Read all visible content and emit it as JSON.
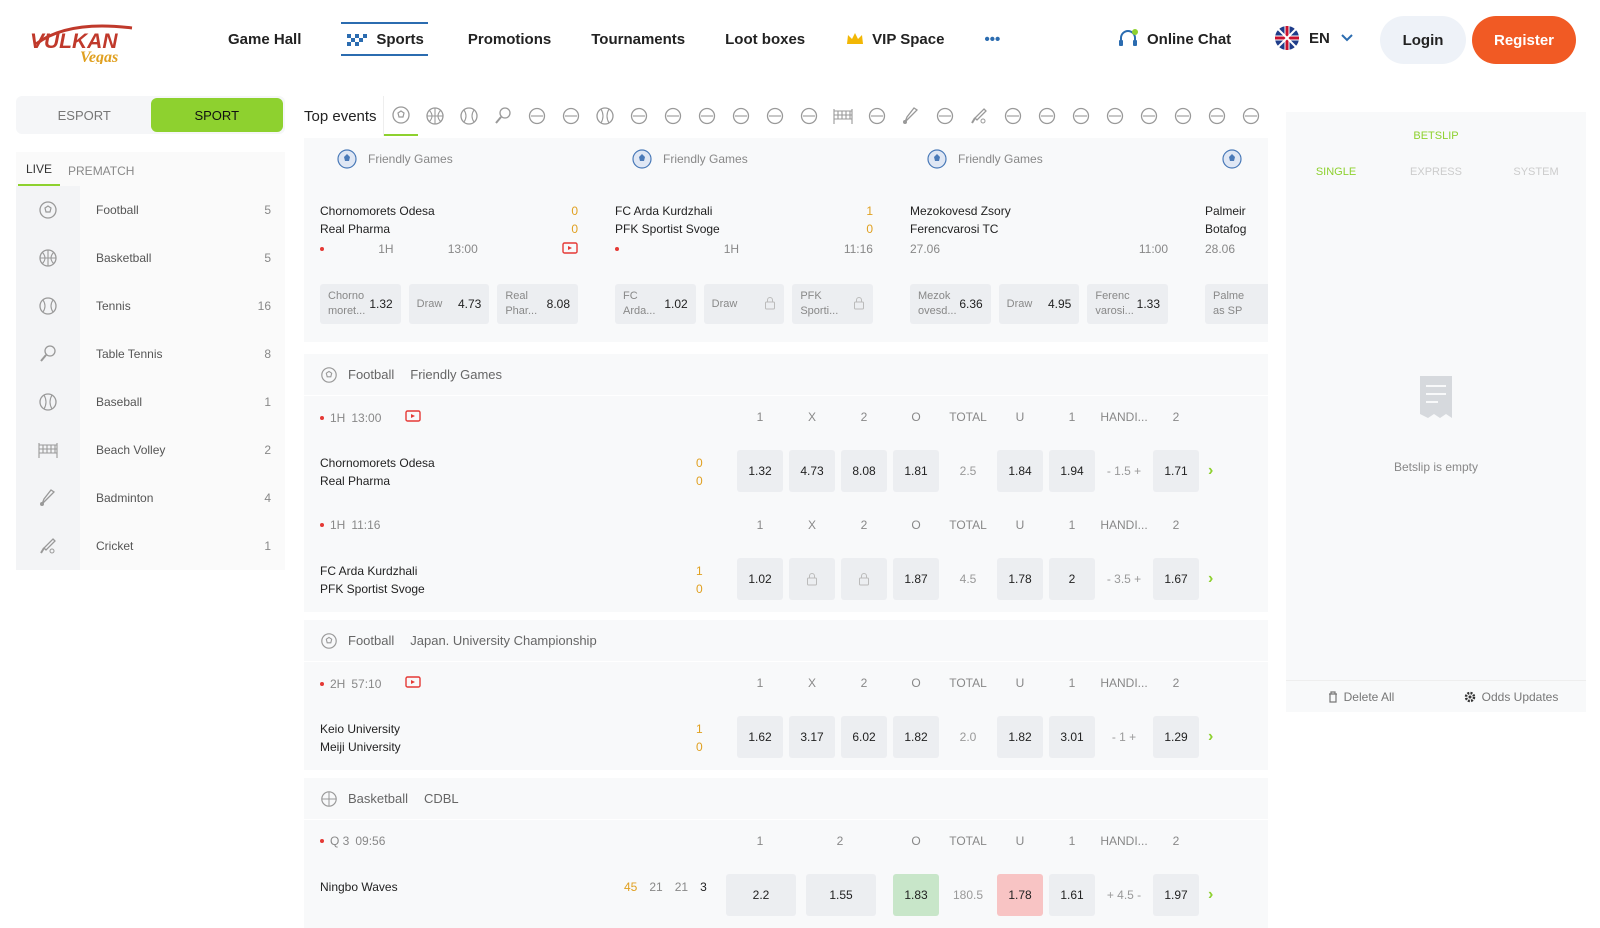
{
  "brand": {
    "line1": "VULKAN",
    "line2": "Vegas"
  },
  "nav": {
    "items": [
      "Game Hall",
      "Sports",
      "Promotions",
      "Tournaments",
      "Loot boxes",
      "VIP Space"
    ],
    "more": "•••",
    "chat": "Online Chat",
    "lang": "EN",
    "login": "Login",
    "register": "Register"
  },
  "sidebar": {
    "toggle": [
      "ESPORT",
      "SPORT"
    ],
    "tabs": [
      "LIVE",
      "PREMATCH"
    ],
    "sports": [
      {
        "label": "Football",
        "count": "5",
        "icon": "football-icon"
      },
      {
        "label": "Basketball",
        "count": "5",
        "icon": "basketball-icon"
      },
      {
        "label": "Tennis",
        "count": "16",
        "icon": "tennis-icon"
      },
      {
        "label": "Table Tennis",
        "count": "8",
        "icon": "table-tennis-icon"
      },
      {
        "label": "Baseball",
        "count": "1",
        "icon": "baseball-icon"
      },
      {
        "label": "Beach Volley",
        "count": "2",
        "icon": "beach-volley-icon"
      },
      {
        "label": "Badminton",
        "count": "4",
        "icon": "badminton-icon"
      },
      {
        "label": "Cricket",
        "count": "1",
        "icon": "cricket-icon"
      }
    ]
  },
  "top_events": {
    "title": "Top events",
    "cards": [
      {
        "league": "Friendly Games",
        "home": "Chornomorets Odesa",
        "away": "Real Pharma",
        "hs": "0",
        "as": "0",
        "period": "1H",
        "time": "13:00",
        "odds": [
          {
            "n1": "Chorno",
            "n2": "moret...",
            "v": "1.32"
          },
          {
            "n1": "Draw",
            "n2": "",
            "v": "4.73"
          },
          {
            "n1": "Real",
            "n2": "Phar...",
            "v": "8.08"
          }
        ]
      },
      {
        "league": "Friendly Games",
        "home": "FC Arda Kurdzhali",
        "away": "PFK Sportist Svoge",
        "hs": "1",
        "as": "0",
        "period": "1H",
        "time": "11:16",
        "odds": [
          {
            "n1": "FC",
            "n2": "Arda...",
            "v": "1.02"
          },
          {
            "n1": "Draw",
            "n2": "",
            "v": ""
          },
          {
            "n1": "PFK",
            "n2": "Sporti...",
            "v": ""
          }
        ]
      },
      {
        "league": "Friendly Games",
        "home": "Mezokovesd Zsory",
        "away": "Ferencvarosi TC",
        "hs": "",
        "as": "",
        "period": "27.06",
        "time": "11:00",
        "odds": [
          {
            "n1": "Mezok",
            "n2": "ovesd...",
            "v": "6.36"
          },
          {
            "n1": "Draw",
            "n2": "",
            "v": "4.95"
          },
          {
            "n1": "Ferenc",
            "n2": "varosi...",
            "v": "1.33"
          }
        ]
      },
      {
        "league": "",
        "home": "Palmeir",
        "away": "Botafog",
        "hs": "",
        "as": "",
        "period": "28.06",
        "time": "",
        "odds": [
          {
            "n1": "Palme",
            "n2": "as SP",
            "v": ""
          }
        ]
      }
    ]
  },
  "blocks": [
    {
      "sport": "Football",
      "league": "Friendly Games",
      "events": [
        {
          "period": "1H",
          "time": "13:00",
          "video": true,
          "home": "Chornomorets Odesa",
          "away": "Real Pharma",
          "hs": "0",
          "as": "0",
          "heads": [
            "1",
            "X",
            "2",
            "O",
            "TOTAL",
            "U",
            "1",
            "HANDI...",
            "2"
          ],
          "odds": [
            "1.32",
            "4.73",
            "8.08",
            "1.81",
            "2.5",
            "1.84",
            "1.94",
            "- 1.5 +",
            "1.71"
          ]
        },
        {
          "period": "1H",
          "time": "11:16",
          "video": false,
          "home": "FC Arda Kurdzhali",
          "away": "PFK Sportist Svoge",
          "hs": "1",
          "as": "0",
          "heads": [
            "1",
            "X",
            "2",
            "O",
            "TOTAL",
            "U",
            "1",
            "HANDI...",
            "2"
          ],
          "odds": [
            "1.02",
            "",
            "",
            "1.87",
            "4.5",
            "1.78",
            "2",
            "- 3.5 +",
            "1.67"
          ]
        }
      ]
    },
    {
      "sport": "Football",
      "league": "Japan. University Championship",
      "events": [
        {
          "period": "2H",
          "time": "57:10",
          "video": true,
          "home": "Keio University",
          "away": "Meiji University",
          "hs": "1",
          "as": "0",
          "heads": [
            "1",
            "X",
            "2",
            "O",
            "TOTAL",
            "U",
            "1",
            "HANDI...",
            "2"
          ],
          "odds": [
            "1.62",
            "3.17",
            "6.02",
            "1.82",
            "2.0",
            "1.82",
            "3.01",
            "- 1 +",
            "1.29"
          ]
        }
      ]
    },
    {
      "sport": "Basketball",
      "league": "CDBL",
      "events": [
        {
          "period": "Q 3",
          "time": "09:56",
          "video": false,
          "home": "Ningbo Waves",
          "away": "",
          "hs": "45",
          "q1": "21",
          "q2": "21",
          "q3": "3",
          "heads": [
            "1",
            "2",
            "O",
            "TOTAL",
            "U",
            "1",
            "HANDI...",
            "2"
          ],
          "odds": [
            "2.2",
            "1.55",
            "1.83",
            "180.5",
            "1.78",
            "1.61",
            "+ 4.5 -",
            "1.97"
          ]
        }
      ]
    }
  ],
  "betslip": {
    "title": "BETSLIP",
    "tabs": [
      "SINGLE",
      "EXPRESS",
      "SYSTEM"
    ],
    "empty": "Betslip is empty",
    "delete_all": "Delete All",
    "odds_updates": "Odds Updates"
  },
  "colors": {
    "accent": "#8ed12f",
    "register": "#f15a24",
    "score": "#e0a020",
    "live_dot": "#e53935"
  }
}
